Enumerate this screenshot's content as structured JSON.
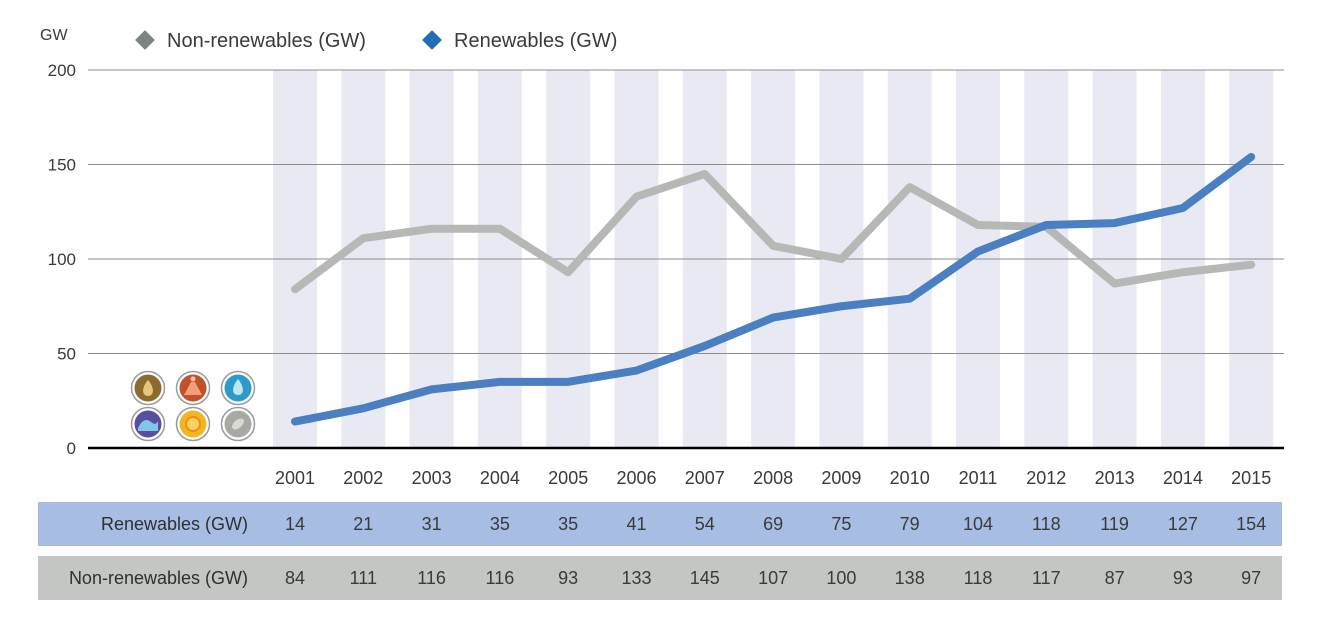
{
  "chart_data": {
    "type": "line",
    "yunit": "GW",
    "ylim": [
      0,
      200
    ],
    "yticks": [
      0,
      50,
      100,
      150,
      200
    ],
    "grid": true,
    "legend_position": "top-left",
    "categories": [
      "2001",
      "2002",
      "2003",
      "2004",
      "2005",
      "2006",
      "2007",
      "2008",
      "2009",
      "2010",
      "2011",
      "2012",
      "2013",
      "2014",
      "2015"
    ],
    "series": [
      {
        "name": "Non-renewables (GW)",
        "row_label": "Non-renewables (GW)",
        "color": "#b5b8b5",
        "marker_color": "#7d837f",
        "values": [
          84,
          111,
          116,
          116,
          93,
          133,
          145,
          107,
          100,
          138,
          118,
          117,
          87,
          93,
          97
        ]
      },
      {
        "name": "Renewables (GW)",
        "row_label": "Renewables (GW)",
        "color": "#4a7fc1",
        "marker_color": "#1f6fb2",
        "values": [
          14,
          21,
          31,
          35,
          35,
          41,
          54,
          69,
          75,
          79,
          104,
          118,
          119,
          127,
          154
        ]
      }
    ],
    "table": {
      "rows_order": [
        1,
        0
      ],
      "row_colors": [
        "#a8bde3",
        "#c4c6c4"
      ]
    },
    "colors": {
      "band": "#e8e9f3",
      "gridline": "#8c8c8c",
      "axis": "#000000",
      "text": "#3a3a3a"
    },
    "icons": [
      {
        "name": "bioenergy-icon",
        "fill": "#8a6d2e"
      },
      {
        "name": "geothermal-icon",
        "fill": "#c2502c"
      },
      {
        "name": "hydropower-icon",
        "fill": "#2b9bc9"
      },
      {
        "name": "ocean-icon",
        "fill": "#5a4ea1"
      },
      {
        "name": "solar-icon",
        "fill": "#f2b620"
      },
      {
        "name": "wind-icon",
        "fill": "#a9a9a3"
      }
    ]
  }
}
